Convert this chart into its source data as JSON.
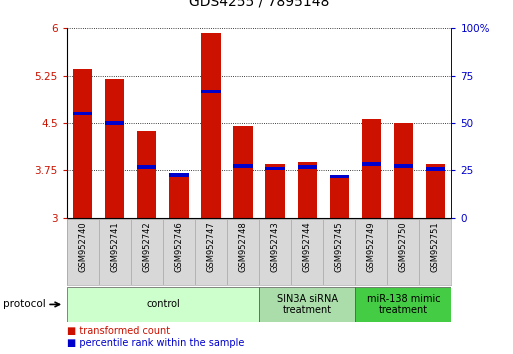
{
  "title": "GDS4255 / 7895148",
  "samples": [
    "GSM952740",
    "GSM952741",
    "GSM952742",
    "GSM952746",
    "GSM952747",
    "GSM952748",
    "GSM952743",
    "GSM952744",
    "GSM952745",
    "GSM952749",
    "GSM952750",
    "GSM952751"
  ],
  "bar_values": [
    5.35,
    5.2,
    4.38,
    3.68,
    5.92,
    4.46,
    3.85,
    3.88,
    3.65,
    4.57,
    4.5,
    3.85
  ],
  "percentile_values": [
    4.65,
    4.5,
    3.8,
    3.68,
    5.0,
    3.82,
    3.78,
    3.8,
    3.65,
    3.85,
    3.82,
    3.77
  ],
  "bar_bottom": 3.0,
  "ylim": [
    3.0,
    6.0
  ],
  "yticks": [
    3.0,
    3.75,
    4.5,
    5.25,
    6.0
  ],
  "ytick_labels": [
    "3",
    "3.75",
    "4.5",
    "5.25",
    "6"
  ],
  "right_ytick_positions": [
    3.0,
    3.75,
    4.5,
    5.25,
    6.0
  ],
  "right_ytick_labels": [
    "0",
    "25",
    "50",
    "75",
    "100%"
  ],
  "bar_color": "#cc1100",
  "dot_color": "#0000cc",
  "groups": [
    {
      "label": "control",
      "start": 0,
      "end": 6,
      "color": "#ccffcc"
    },
    {
      "label": "SIN3A siRNA\ntreatment",
      "start": 6,
      "end": 9,
      "color": "#aaddaa"
    },
    {
      "label": "miR-138 mimic\ntreatment",
      "start": 9,
      "end": 12,
      "color": "#44cc44"
    }
  ],
  "protocol_label": "protocol",
  "legend_items": [
    {
      "label": "transformed count",
      "color": "#cc1100"
    },
    {
      "label": "percentile rank within the sample",
      "color": "#0000cc"
    }
  ],
  "bar_width": 0.6,
  "figsize": [
    5.13,
    3.54
  ],
  "dpi": 100
}
